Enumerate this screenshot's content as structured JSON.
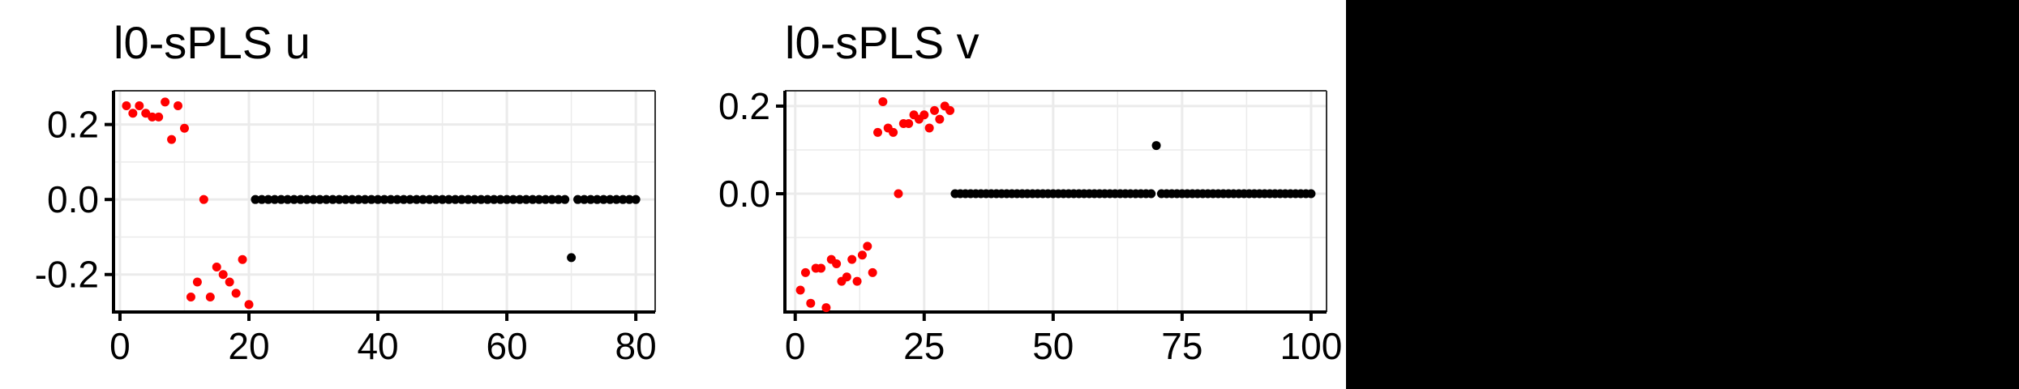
{
  "colors": {
    "selected": "#ff0000",
    "unselected": "#000000",
    "grid": "#ebebeb",
    "axis": "#000000"
  },
  "chart_data": [
    {
      "type": "scatter",
      "title": "l0-sPLS u",
      "xlabel": "",
      "ylabel": "",
      "xlim": [
        -1,
        83
      ],
      "ylim": [
        -0.3,
        0.29
      ],
      "x_ticks": [
        0,
        20,
        40,
        60,
        80
      ],
      "x_tick_labels": [
        "0",
        "20",
        "40",
        "60",
        "80"
      ],
      "y_ticks": [
        0.2,
        0.0,
        -0.2
      ],
      "y_tick_labels": [
        "0.2",
        "0.0",
        "-0.2"
      ],
      "grid": true,
      "series": [
        {
          "name": "selected",
          "color": "#ff0000",
          "x": [
            1,
            2,
            3,
            4,
            5,
            6,
            7,
            8,
            9,
            10,
            11,
            12,
            13,
            14,
            15,
            16,
            17,
            18,
            19,
            20
          ],
          "y": [
            0.25,
            0.23,
            0.25,
            0.23,
            0.22,
            0.22,
            0.26,
            0.16,
            0.25,
            0.19,
            -0.26,
            -0.22,
            0.0,
            -0.26,
            -0.18,
            -0.2,
            -0.22,
            -0.25,
            -0.16,
            -0.28
          ]
        },
        {
          "name": "unselected",
          "color": "#000000",
          "x": [
            21,
            22,
            23,
            24,
            25,
            26,
            27,
            28,
            29,
            30,
            31,
            32,
            33,
            34,
            35,
            36,
            37,
            38,
            39,
            40,
            41,
            42,
            43,
            44,
            45,
            46,
            47,
            48,
            49,
            50,
            51,
            52,
            53,
            54,
            55,
            56,
            57,
            58,
            59,
            60,
            61,
            62,
            63,
            64,
            65,
            66,
            67,
            68,
            69,
            70,
            71,
            72,
            73,
            74,
            75,
            76,
            77,
            78,
            79,
            80
          ],
          "y": [
            0,
            0,
            0,
            0,
            0,
            0,
            0,
            0,
            0,
            0,
            0,
            0,
            0,
            0,
            0,
            0,
            0,
            0,
            0,
            0,
            0,
            0,
            0,
            0,
            0,
            0,
            0,
            0,
            0,
            0,
            0,
            0,
            0,
            0,
            0,
            0,
            0,
            0,
            0,
            0,
            0,
            0,
            0,
            0,
            0,
            0,
            0,
            0,
            0,
            -0.155,
            0,
            0,
            0,
            0,
            0,
            0,
            0,
            0,
            0,
            0
          ]
        }
      ]
    },
    {
      "type": "scatter",
      "title": "l0-sPLS v",
      "xlabel": "",
      "ylabel": "",
      "xlim": [
        -2,
        103
      ],
      "ylim": [
        -0.27,
        0.235
      ],
      "x_ticks": [
        0,
        25,
        50,
        75,
        100
      ],
      "x_tick_labels": [
        "0",
        "25",
        "50",
        "75",
        "100"
      ],
      "y_ticks": [
        0.2,
        0.0
      ],
      "y_tick_labels": [
        "0.2",
        "0.0"
      ],
      "grid": true,
      "series": [
        {
          "name": "selected",
          "color": "#ff0000",
          "x": [
            1,
            2,
            3,
            4,
            5,
            6,
            7,
            8,
            9,
            10,
            11,
            12,
            13,
            14,
            15,
            16,
            17,
            18,
            19,
            20,
            21,
            22,
            23,
            24,
            25,
            26,
            27,
            28,
            29,
            30
          ],
          "y": [
            -0.22,
            -0.18,
            -0.25,
            -0.17,
            -0.17,
            -0.26,
            -0.15,
            -0.16,
            -0.2,
            -0.19,
            -0.15,
            -0.2,
            -0.14,
            -0.12,
            -0.18,
            0.14,
            0.21,
            0.15,
            0.14,
            0.0,
            0.16,
            0.16,
            0.18,
            0.17,
            0.18,
            0.15,
            0.19,
            0.17,
            0.2,
            0.19
          ]
        },
        {
          "name": "unselected",
          "color": "#000000",
          "x": [
            31,
            32,
            33,
            34,
            35,
            36,
            37,
            38,
            39,
            40,
            41,
            42,
            43,
            44,
            45,
            46,
            47,
            48,
            49,
            50,
            51,
            52,
            53,
            54,
            55,
            56,
            57,
            58,
            59,
            60,
            61,
            62,
            63,
            64,
            65,
            66,
            67,
            68,
            69,
            70,
            71,
            72,
            73,
            74,
            75,
            76,
            77,
            78,
            79,
            80,
            81,
            82,
            83,
            84,
            85,
            86,
            87,
            88,
            89,
            90,
            91,
            92,
            93,
            94,
            95,
            96,
            97,
            98,
            99,
            100
          ],
          "y": [
            0,
            0,
            0,
            0,
            0,
            0,
            0,
            0,
            0,
            0,
            0,
            0,
            0,
            0,
            0,
            0,
            0,
            0,
            0,
            0,
            0,
            0,
            0,
            0,
            0,
            0,
            0,
            0,
            0,
            0,
            0,
            0,
            0,
            0,
            0,
            0,
            0,
            0,
            0,
            0.11,
            0,
            0,
            0,
            0,
            0,
            0,
            0,
            0,
            0,
            0,
            0,
            0,
            0,
            0,
            0,
            0,
            0,
            0,
            0,
            0,
            0,
            0,
            0,
            0,
            0,
            0,
            0,
            0,
            0,
            0
          ]
        }
      ]
    }
  ]
}
